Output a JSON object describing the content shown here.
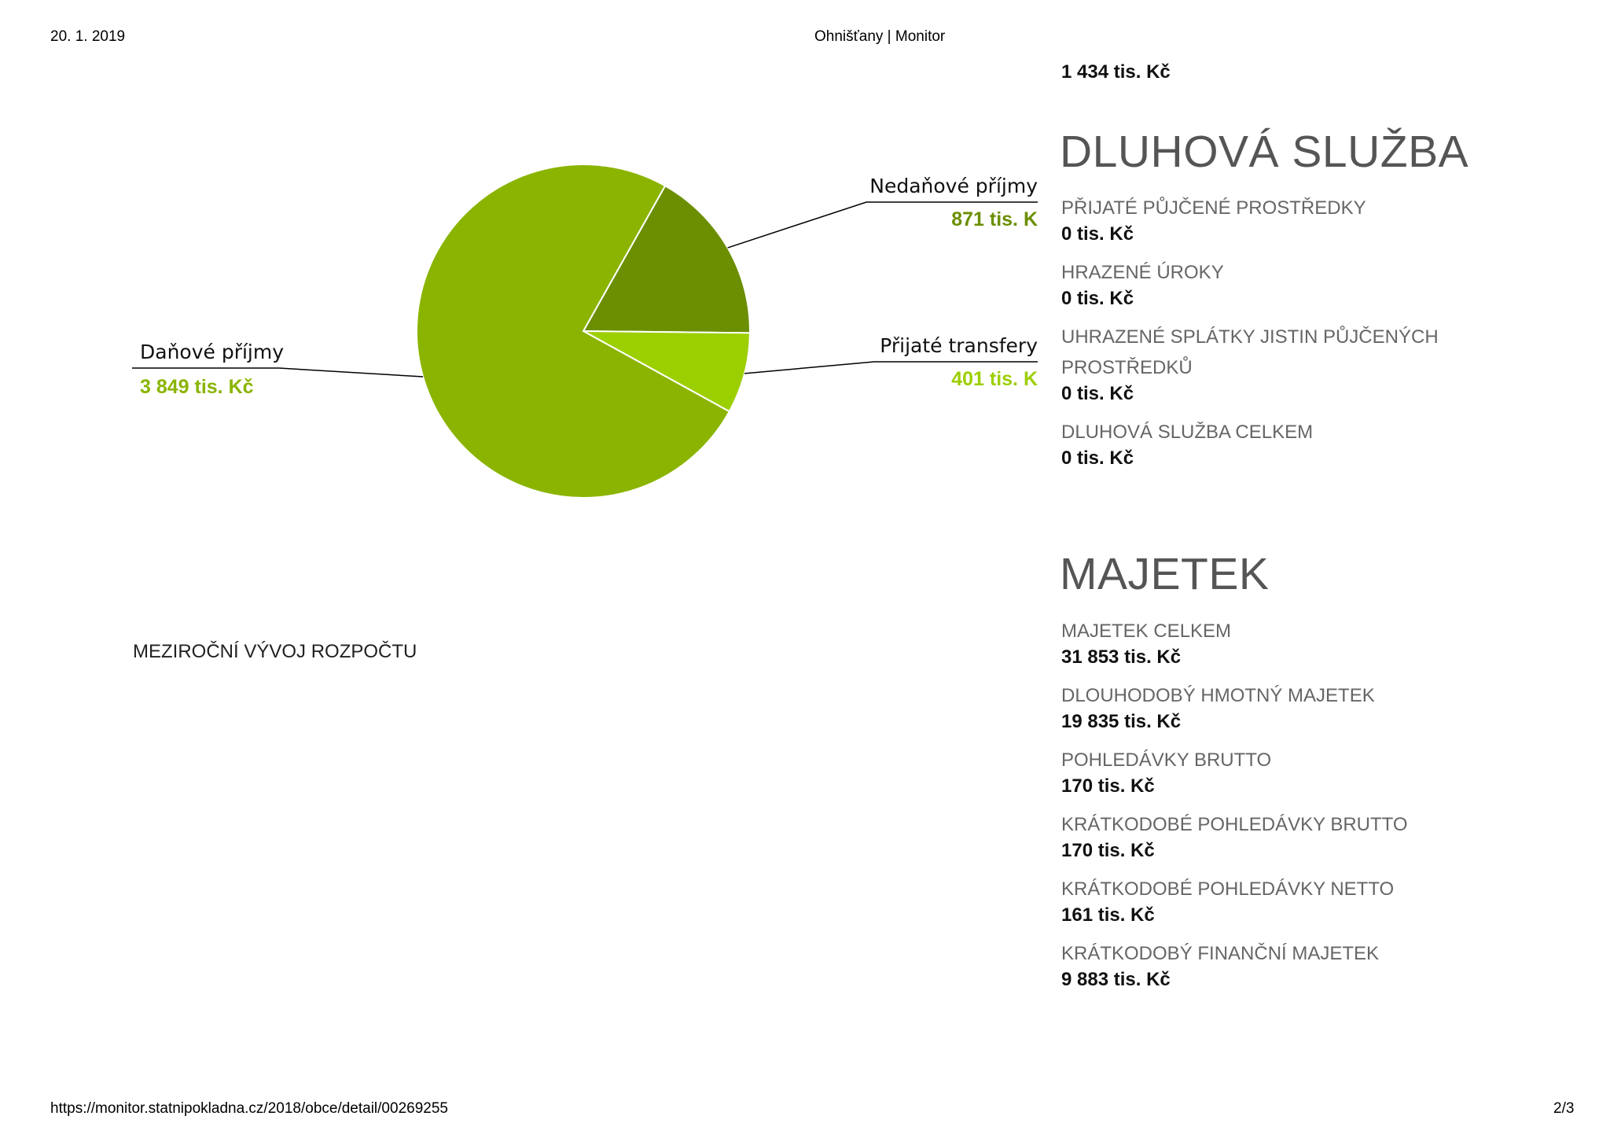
{
  "print_header": {
    "date": "20. 1. 2019",
    "title": "Ohnišťany | Monitor"
  },
  "print_footer": {
    "url": "https://monitor.statnipokladna.cz/2018/obce/detail/00269255",
    "page": "2/3"
  },
  "top_value": "1 434 tis. Kč",
  "chart_data": {
    "type": "pie",
    "unit": "tis. Kč",
    "slices": [
      {
        "name": "Daňové příjmy",
        "value": 3849,
        "value_label": "3 849 tis. Kč",
        "color": "#8ab400"
      },
      {
        "name": "Nedaňové příjmy",
        "value": 871,
        "value_label": "871 tis. K",
        "color": "#6b8f00"
      },
      {
        "name": "Přijaté transfery",
        "value": 401,
        "value_label": "401 tis. K",
        "color": "#9ccf00"
      }
    ],
    "slice_border_color": "#ffffff",
    "leader_line_color": "#000000"
  },
  "chart_heading": "MEZIROČNÍ VÝVOJ ROZPOČTU",
  "debt_service": {
    "title": "DLUHOVÁ SLUŽBA",
    "items": [
      {
        "label": "PŘIJATÉ PŮJČENÉ PROSTŘEDKY",
        "value": "0 tis. Kč"
      },
      {
        "label": "HRAZENÉ ÚROKY",
        "value": "0 tis. Kč"
      },
      {
        "label": "UHRAZENÉ SPLÁTKY JISTIN PŮJČENÝCH PROSTŘEDKŮ",
        "value": "0 tis. Kč"
      },
      {
        "label": "DLUHOVÁ SLUŽBA CELKEM",
        "value": "0 tis. Kč"
      }
    ]
  },
  "assets": {
    "title": "MAJETEK",
    "items": [
      {
        "label": "MAJETEK CELKEM",
        "value": "31 853 tis. Kč"
      },
      {
        "label": "DLOUHODOBÝ HMOTNÝ MAJETEK",
        "value": "19 835 tis. Kč"
      },
      {
        "label": "POHLEDÁVKY BRUTTO",
        "value": "170 tis. Kč"
      },
      {
        "label": "KRÁTKODOBÉ POHLEDÁVKY BRUTTO",
        "value": "170 tis. Kč"
      },
      {
        "label": "KRÁTKODOBÉ POHLEDÁVKY NETTO",
        "value": "161 tis. Kč"
      },
      {
        "label": "KRÁTKODOBÝ FINANČNÍ MAJETEK",
        "value": "9 883 tis. Kč"
      }
    ]
  }
}
